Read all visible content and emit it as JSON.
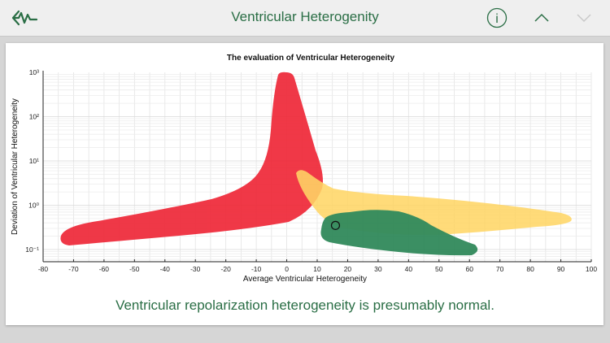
{
  "header": {
    "title": "Ventricular Heterogenity",
    "back_icon": "ecg-back-arrow-icon",
    "info_icon": "info-circle-icon",
    "up_icon": "chevron-up-icon",
    "down_icon": "chevron-down-icon",
    "accent": "#2a6e45"
  },
  "chart_data": {
    "type": "scatter",
    "title": "The evaluation of Ventricular Heterogeneity",
    "xlabel": "Average Ventricular Heterogeneity",
    "ylabel": "Deviation of Ventricular Heterogeneity",
    "xlim": [
      -80,
      100
    ],
    "xticks": [
      "-80",
      "-70",
      "-60",
      "-50",
      "-40",
      "-30",
      "-20",
      "-10",
      "0",
      "10",
      "20",
      "30",
      "40",
      "50",
      "60",
      "70",
      "80",
      "90",
      "100"
    ],
    "yscale": "log",
    "yticks": [
      "10⁻¹",
      "10⁰",
      "10¹",
      "10²",
      "10³"
    ],
    "grid": true,
    "regions": [
      {
        "color": "#ee2737"
      },
      {
        "color": "#ffd45e"
      },
      {
        "color": "#2a8556"
      }
    ],
    "point": {
      "x": 16,
      "y": 0.35
    }
  },
  "message": "Ventricular repolarization heterogeneity is presumably normal."
}
